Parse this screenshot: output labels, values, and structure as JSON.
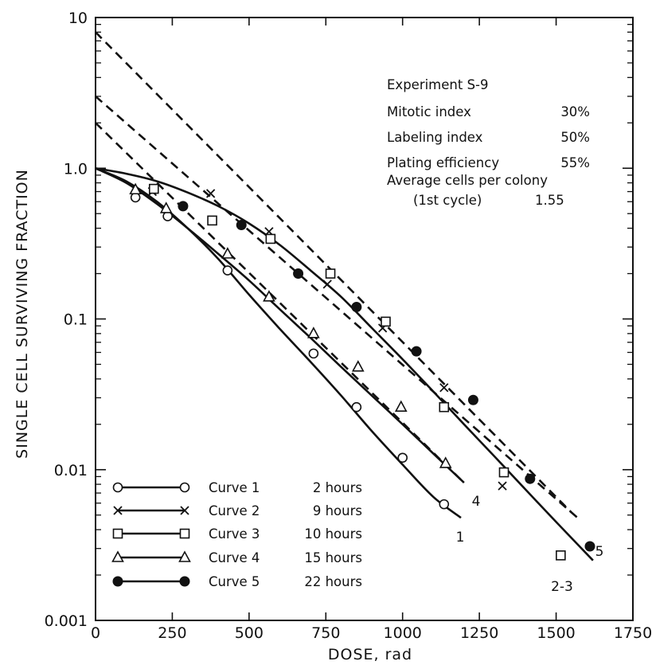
{
  "chart_data": {
    "type": "scatter",
    "xlabel": "DOSE,  rad",
    "ylabel": "SINGLE  CELL  SURVIVING  FRACTION",
    "xlim": [
      0,
      1750
    ],
    "ylim": [
      0.001,
      10
    ],
    "y_scale": "log",
    "x_ticks": [
      0,
      250,
      500,
      750,
      1000,
      1250,
      1500,
      1750
    ],
    "x_tick_labels": [
      "0",
      "250",
      "500",
      "750",
      "1000",
      "1250",
      "1500",
      "1750"
    ],
    "y_ticks": [
      0.001,
      0.01,
      0.1,
      1,
      10
    ],
    "y_tick_labels": [
      "0.001",
      "0.01",
      "0.1",
      "1.0",
      "10"
    ],
    "grid": false,
    "legend_position": "bottom-left",
    "annotation": {
      "title": "Experiment  S-9",
      "rows": [
        {
          "label": "Mitotic index",
          "value": "30%"
        },
        {
          "label": "Labeling index",
          "value": "50%"
        },
        {
          "label": "Plating efficiency",
          "value": "55%"
        },
        {
          "label": "Average cells per colony",
          "value": ""
        },
        {
          "label": "(1st cycle)",
          "value": "1.55"
        }
      ]
    },
    "series": [
      {
        "name": "Curve  1",
        "time": "2 hours",
        "marker": "open-circle",
        "end_label": "1",
        "x": [
          130,
          235,
          430,
          710,
          850,
          1000,
          1135
        ],
        "y": [
          0.64,
          0.48,
          0.21,
          0.059,
          0.026,
          0.012,
          0.0059
        ],
        "fit": [
          [
            0,
            1.0
          ],
          [
            100,
            0.82
          ],
          [
            200,
            0.6
          ],
          [
            300,
            0.4
          ],
          [
            400,
            0.25
          ],
          [
            500,
            0.145
          ],
          [
            600,
            0.086
          ],
          [
            700,
            0.052
          ],
          [
            800,
            0.031
          ],
          [
            900,
            0.018
          ],
          [
            1000,
            0.0108
          ],
          [
            1100,
            0.0066
          ],
          [
            1190,
            0.0048
          ]
        ]
      },
      {
        "name": "Curve  2",
        "time": "9 hours",
        "marker": "x",
        "end_label": "",
        "x": [
          185,
          375,
          565,
          755,
          935,
          1135,
          1325
        ],
        "y": [
          0.7,
          0.68,
          0.38,
          0.17,
          0.087,
          0.035,
          0.0078
        ],
        "fit": [
          [
            0,
            8.0
          ],
          [
            200,
            3.1
          ],
          [
            400,
            1.2
          ],
          [
            600,
            0.47
          ],
          [
            800,
            0.18
          ],
          [
            1000,
            0.071
          ],
          [
            1200,
            0.028
          ],
          [
            1400,
            0.011
          ],
          [
            1550,
            0.0052
          ]
        ]
      },
      {
        "name": "Curve  3",
        "time": "10 hours",
        "marker": "open-square",
        "end_label": "2-3",
        "x": [
          190,
          380,
          570,
          765,
          945,
          1135,
          1330,
          1515
        ],
        "y": [
          0.73,
          0.45,
          0.34,
          0.2,
          0.096,
          0.026,
          0.0096,
          0.0027
        ],
        "fit": [
          [
            0,
            3.0
          ],
          [
            200,
            1.32
          ],
          [
            400,
            0.58
          ],
          [
            600,
            0.26
          ],
          [
            800,
            0.113
          ],
          [
            1000,
            0.05
          ],
          [
            1200,
            0.022
          ],
          [
            1400,
            0.0097
          ],
          [
            1580,
            0.0046
          ]
        ]
      },
      {
        "name": "Curve  4",
        "time": "15 hours",
        "marker": "open-triangle",
        "end_label": "4",
        "x": [
          130,
          230,
          430,
          565,
          710,
          855,
          995,
          1140
        ],
        "y": [
          0.72,
          0.54,
          0.27,
          0.14,
          0.08,
          0.048,
          0.026,
          0.011
        ],
        "fit": [
          [
            0,
            1.0
          ],
          [
            100,
            0.8
          ],
          [
            200,
            0.58
          ],
          [
            300,
            0.4
          ],
          [
            400,
            0.27
          ],
          [
            500,
            0.18
          ],
          [
            600,
            0.116
          ],
          [
            700,
            0.075
          ],
          [
            800,
            0.048
          ],
          [
            900,
            0.031
          ],
          [
            1000,
            0.02
          ],
          [
            1100,
            0.0128
          ],
          [
            1200,
            0.0082
          ]
        ]
      },
      {
        "name": "Curve  5",
        "time": "22 hours",
        "marker": "filled-circle",
        "end_label": "5",
        "x": [
          285,
          475,
          660,
          850,
          1045,
          1230,
          1415,
          1610
        ],
        "y": [
          0.56,
          0.42,
          0.2,
          0.12,
          0.061,
          0.029,
          0.0087,
          0.0031
        ],
        "fit": [
          [
            0,
            1.0
          ],
          [
            100,
            0.92
          ],
          [
            200,
            0.82
          ],
          [
            300,
            0.69
          ],
          [
            400,
            0.56
          ],
          [
            500,
            0.43
          ],
          [
            600,
            0.31
          ],
          [
            700,
            0.21
          ],
          [
            800,
            0.14
          ],
          [
            900,
            0.087
          ],
          [
            1000,
            0.054
          ],
          [
            1100,
            0.033
          ],
          [
            1200,
            0.02
          ],
          [
            1300,
            0.0122
          ],
          [
            1400,
            0.0074
          ],
          [
            1500,
            0.0045
          ],
          [
            1620,
            0.0025
          ]
        ]
      }
    ],
    "dashed_lines": [
      {
        "name": "curve-2-extrapolation",
        "points": [
          [
            0,
            8.0
          ],
          [
            1550,
            0.0052
          ]
        ]
      },
      {
        "name": "curve-3-extrapolation",
        "points": [
          [
            0,
            3.0
          ],
          [
            1580,
            0.0046
          ]
        ]
      },
      {
        "name": "curve-4-extrapolation",
        "points": [
          [
            0,
            2.0
          ],
          [
            1200,
            0.0082
          ]
        ]
      }
    ]
  }
}
